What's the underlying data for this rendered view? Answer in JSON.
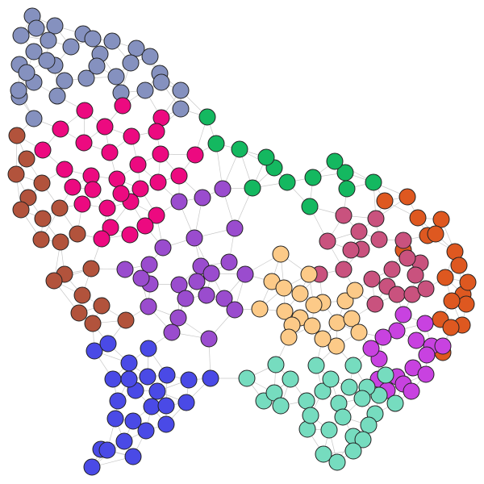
{
  "diagram": {
    "type": "network-graph",
    "node_outline_color": "#222222",
    "edge_color": "#c8c8c8",
    "communities": [
      {
        "id": "slate-blue",
        "color": "#8591bf",
        "node_count": 33
      },
      {
        "id": "magenta",
        "color": "#ec0a80",
        "node_count": 30
      },
      {
        "id": "brown",
        "color": "#b2533c",
        "node_count": 19
      },
      {
        "id": "green",
        "color": "#14b860",
        "node_count": 13
      },
      {
        "id": "purple",
        "color": "#9a4cce",
        "node_count": 24
      },
      {
        "id": "orange",
        "color": "#de5820",
        "node_count": 18
      },
      {
        "id": "rose",
        "color": "#c9527e",
        "node_count": 20
      },
      {
        "id": "peach",
        "color": "#fcca88",
        "node_count": 20
      },
      {
        "id": "violet",
        "color": "#c842e0",
        "node_count": 17
      },
      {
        "id": "blue",
        "color": "#4a4ae6",
        "node_count": 25
      },
      {
        "id": "teal",
        "color": "#76dcbf",
        "node_count": 29
      }
    ]
  }
}
